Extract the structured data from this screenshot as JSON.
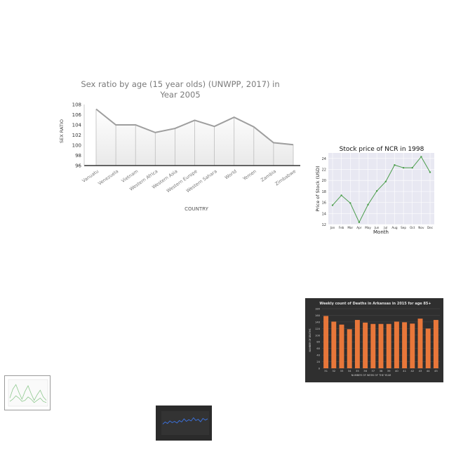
{
  "chart_data": [
    {
      "type": "line",
      "title": "Sex ratio by age (15 year olds) (UNWPP, 2017) in Year 2005",
      "xlabel": "COUNTRY",
      "ylabel": "SEX RATIO",
      "categories": [
        "Vanuatu",
        "Venezuela",
        "Vietnam",
        "Western Africa",
        "Western Asia",
        "Western Europe",
        "Western Sahara",
        "World",
        "Yemen",
        "Zambia",
        "Zimbabwe"
      ],
      "values": [
        107.1,
        104.0,
        104.0,
        102.5,
        103.3,
        104.9,
        103.7,
        105.5,
        103.6,
        100.5,
        100.1
      ],
      "ylim": [
        96,
        108
      ],
      "yticks": [
        "96",
        "98",
        "100",
        "102",
        "104",
        "106",
        "108"
      ],
      "grid": false,
      "colors": {
        "line": "#9e9e9e"
      }
    },
    {
      "type": "line",
      "title": "Stock price of NCR in 1998",
      "xlabel": "Month",
      "ylabel": "Price of Stock (USD)",
      "categories": [
        "Jan",
        "Feb",
        "Mar",
        "Apr",
        "May",
        "Jun",
        "Jul",
        "Aug",
        "Sep",
        "Oct",
        "Nov",
        "Dec"
      ],
      "values": [
        15.5,
        17.3,
        15.9,
        12.4,
        15.6,
        18.1,
        19.8,
        22.8,
        22.3,
        22.3,
        24.3,
        21.5
      ],
      "ylim": [
        12,
        25
      ],
      "yticks": [
        "12",
        "14",
        "16",
        "18",
        "20",
        "22",
        "24"
      ],
      "grid": true,
      "colors": {
        "line": "#4a9d4a",
        "background": "#e8e8f2"
      }
    },
    {
      "type": "bar",
      "title": "Weekly count of Deaths in Arkansas in 2015 for age 85+",
      "xlabel": "NUMBER OF WEEK OF THE YEAR",
      "ylabel": "NUMBER OF DEATHS",
      "categories": [
        "31",
        "32",
        "33",
        "34",
        "35",
        "36",
        "37",
        "38",
        "39",
        "40",
        "41",
        "42",
        "43",
        "44",
        "45"
      ],
      "values": [
        158,
        141,
        132,
        118,
        146,
        138,
        134,
        134,
        134,
        141,
        139,
        135,
        150,
        120,
        146
      ],
      "ylim": [
        0,
        180
      ],
      "yticks": [
        "0",
        "20",
        "40",
        "60",
        "80",
        "100",
        "120",
        "140",
        "160",
        "180"
      ],
      "grid": true,
      "colors": {
        "bar": "#e8773a",
        "background": "#2f2f2f"
      }
    },
    {
      "type": "line",
      "series": [
        {
          "values": [
            0.3,
            0.7,
            0.9,
            0.55,
            0.25,
            0.6,
            0.85,
            0.5,
            0.2,
            0.45,
            0.65,
            0.35,
            0.2
          ]
        },
        {
          "values": [
            0.15,
            0.25,
            0.4,
            0.3,
            0.15,
            0.2,
            0.35,
            0.25,
            0.1,
            0.2,
            0.3,
            0.15,
            0.1
          ]
        }
      ],
      "ylim": [
        0,
        1
      ],
      "colors": {
        "line": "#8fc98f",
        "frame": "#9a9a9a"
      }
    },
    {
      "type": "line",
      "values": [
        0.45,
        0.55,
        0.48,
        0.6,
        0.52,
        0.58,
        0.5,
        0.62,
        0.55,
        0.7,
        0.58,
        0.66,
        0.6,
        0.75,
        0.62,
        0.68,
        0.56,
        0.72,
        0.64,
        0.7
      ],
      "ylim": [
        0,
        1
      ],
      "colors": {
        "line": "#3b6fd6",
        "background": "#2b2b2b"
      }
    }
  ]
}
